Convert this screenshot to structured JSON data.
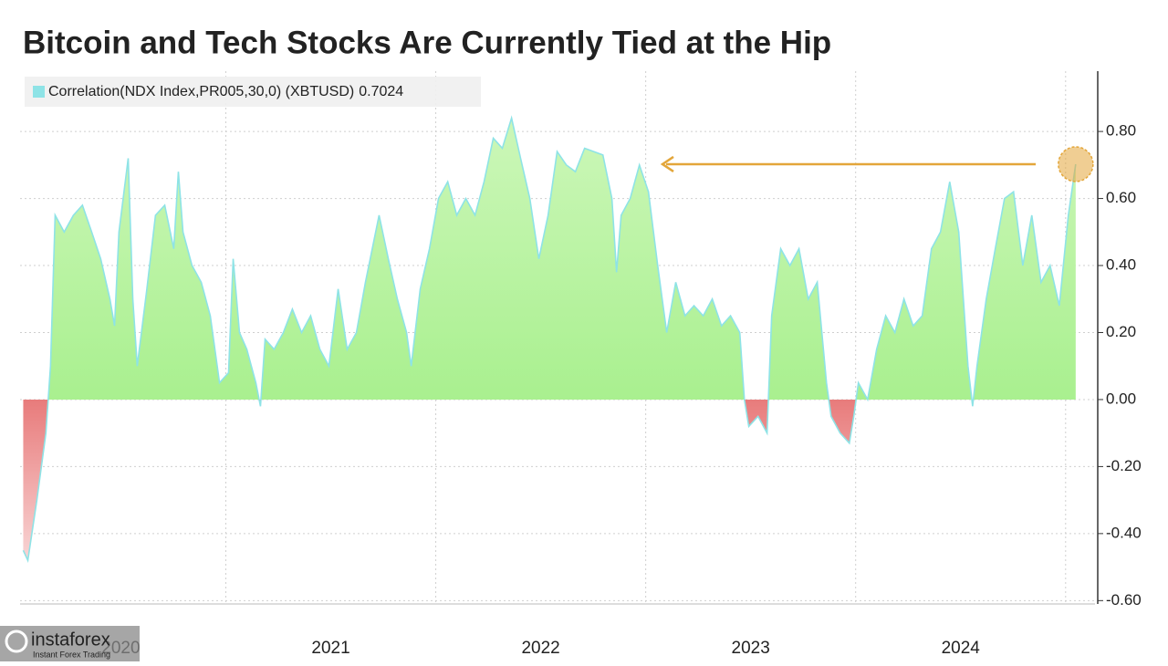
{
  "chart_data": {
    "type": "area",
    "title": "Bitcoin and Tech Stocks Are Currently Tied at the Hip",
    "series": [
      {
        "name": "Correlation(NDX Index,PR005,30,0) (XBTUSD)",
        "color": "#8ee3e6",
        "positive_color": "#a9f08f",
        "negative_color": "#e87b7b",
        "x": [
          2020.035,
          2020.057,
          2020.1,
          2020.143,
          2020.165,
          2020.187,
          2020.23,
          2020.274,
          2020.317,
          2020.361,
          2020.404,
          2020.448,
          2020.47,
          2020.491,
          2020.535,
          2020.557,
          2020.578,
          2020.622,
          2020.665,
          2020.709,
          2020.752,
          2020.774,
          2020.796,
          2020.839,
          2020.883,
          2020.926,
          2020.97,
          2021.013,
          2021.035,
          2021.065,
          2021.1,
          2021.143,
          2021.165,
          2021.187,
          2021.23,
          2021.274,
          2021.317,
          2021.361,
          2021.404,
          2021.448,
          2021.491,
          2021.535,
          2021.578,
          2021.622,
          2021.665,
          2021.73,
          2021.774,
          2021.817,
          2021.861,
          2021.883,
          2021.926,
          2021.97,
          2022.013,
          2022.057,
          2022.1,
          2022.143,
          2022.187,
          2022.23,
          2022.274,
          2022.317,
          2022.361,
          2022.404,
          2022.448,
          2022.491,
          2022.535,
          2022.578,
          2022.622,
          2022.665,
          2022.709,
          2022.752,
          2022.796,
          2022.839,
          2022.861,
          2022.883,
          2022.926,
          2022.97,
          2023.013,
          2023.057,
          2023.1,
          2023.143,
          2023.187,
          2023.23,
          2023.274,
          2023.317,
          2023.361,
          2023.404,
          2023.448,
          2023.47,
          2023.491,
          2023.535,
          2023.578,
          2023.6,
          2023.643,
          2023.687,
          2023.73,
          2023.774,
          2023.817,
          2023.861,
          2023.883,
          2023.926,
          2023.97,
          2023.991,
          2024.013,
          2024.057,
          2024.1,
          2024.143,
          2024.187,
          2024.23,
          2024.274,
          2024.317,
          2024.361,
          2024.404,
          2024.448,
          2024.491,
          2024.535,
          2024.557,
          2024.578,
          2024.622,
          2024.665,
          2024.709,
          2024.752,
          2024.796,
          2024.839,
          2024.883,
          2024.926,
          2024.97,
          2025.013,
          2025.048
        ],
        "values": [
          -0.45,
          -0.48,
          -0.3,
          -0.1,
          0.1,
          0.55,
          0.5,
          0.55,
          0.58,
          0.5,
          0.42,
          0.3,
          0.22,
          0.5,
          0.72,
          0.3,
          0.1,
          0.32,
          0.55,
          0.58,
          0.45,
          0.68,
          0.5,
          0.4,
          0.35,
          0.25,
          0.05,
          0.08,
          0.42,
          0.2,
          0.15,
          0.05,
          -0.02,
          0.18,
          0.15,
          0.2,
          0.27,
          0.2,
          0.25,
          0.15,
          0.1,
          0.33,
          0.15,
          0.2,
          0.35,
          0.55,
          0.42,
          0.3,
          0.2,
          0.1,
          0.33,
          0.45,
          0.6,
          0.65,
          0.55,
          0.6,
          0.55,
          0.65,
          0.78,
          0.75,
          0.84,
          0.72,
          0.6,
          0.42,
          0.55,
          0.74,
          0.7,
          0.68,
          0.75,
          0.74,
          0.73,
          0.6,
          0.38,
          0.55,
          0.6,
          0.7,
          0.62,
          0.4,
          0.2,
          0.35,
          0.25,
          0.28,
          0.25,
          0.3,
          0.22,
          0.25,
          0.2,
          0.0,
          -0.08,
          -0.05,
          -0.1,
          0.25,
          0.45,
          0.4,
          0.45,
          0.3,
          0.35,
          0.05,
          -0.05,
          -0.1,
          -0.13,
          -0.05,
          0.05,
          0.0,
          0.15,
          0.25,
          0.2,
          0.3,
          0.22,
          0.25,
          0.45,
          0.5,
          0.65,
          0.5,
          0.1,
          -0.02,
          0.1,
          0.3,
          0.45,
          0.6,
          0.62,
          0.4,
          0.55,
          0.35,
          0.4,
          0.28,
          0.55,
          0.7024
        ]
      }
    ],
    "xlim": [
      2020.02,
      2025.14
    ],
    "xticks": [
      {
        "value": 2020.5,
        "label": "2020"
      },
      {
        "value": 2021.5,
        "label": "2021"
      },
      {
        "value": 2022.5,
        "label": "2022"
      },
      {
        "value": 2023.5,
        "label": "2023"
      },
      {
        "value": 2024.5,
        "label": "2024"
      }
    ],
    "xgrid": [
      2021,
      2022,
      2023,
      2024,
      2025
    ],
    "ylim": [
      -0.61,
      0.98
    ],
    "yticks": [
      {
        "value": -0.6,
        "label": "-0.60"
      },
      {
        "value": -0.4,
        "label": "-0.40"
      },
      {
        "value": -0.2,
        "label": "-0.20"
      },
      {
        "value": 0,
        "label": "0.00"
      },
      {
        "value": 0.2,
        "label": "0.20"
      },
      {
        "value": 0.4,
        "label": "0.40"
      },
      {
        "value": 0.6,
        "label": "0.60"
      },
      {
        "value": 0.8,
        "label": "0.80"
      }
    ],
    "grid": true,
    "legend": "top-left",
    "annotation_color": "#e3a63a"
  },
  "watermark": {
    "name": "instaforex",
    "tagline": "Instant Forex Trading"
  }
}
